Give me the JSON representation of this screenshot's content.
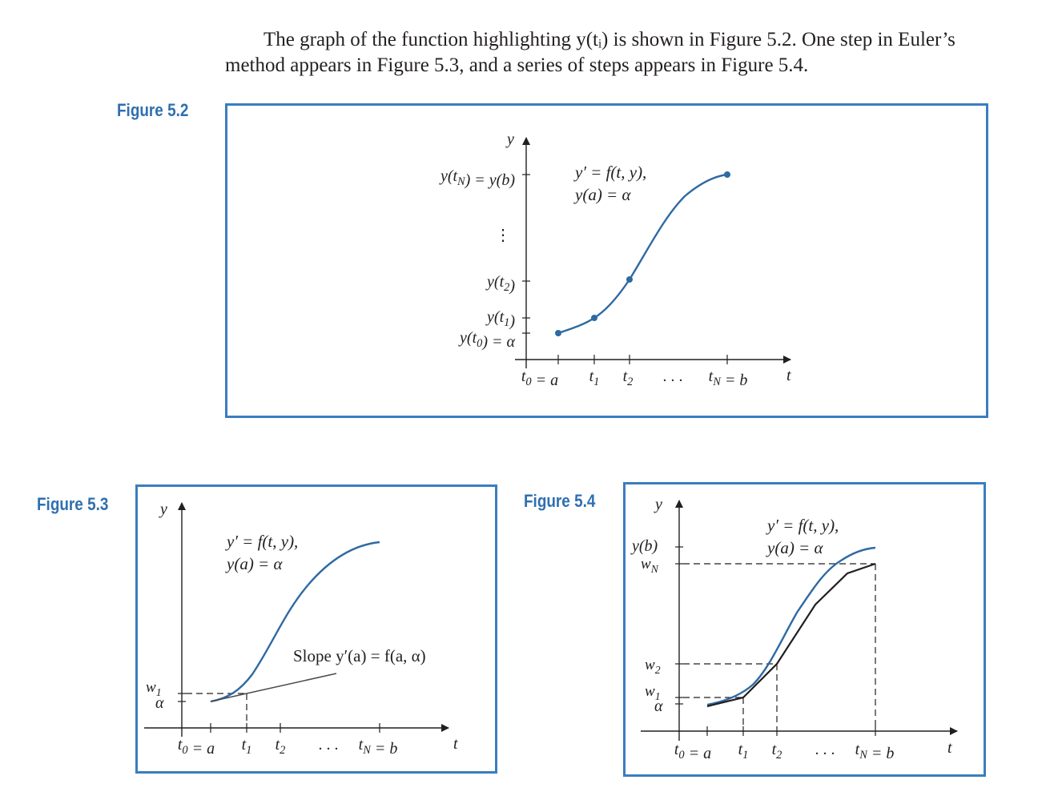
{
  "paragraph": {
    "line1": "The graph of the function highlighting y(tᵢ) is shown in Figure 5.2. One step in Euler’s",
    "line2": "method appears in Figure 5.3, and a series of steps appears in Figure 5.4."
  },
  "colors": {
    "label_blue": "#2f6fb0",
    "frame_blue": "#3a7dc0",
    "curve_blue": "#2e6aa3",
    "ink": "#231f20"
  },
  "figures": {
    "fig52": {
      "label": "Figure 5.2",
      "y_axis": "y",
      "t_axis": "t",
      "ode_line1": "y′ = f(t, y),",
      "ode_line2": "y(a) = α",
      "ylabels": [
        "y(t_N) = y(b)",
        "⋮",
        "y(t_2)",
        "y(t_1)",
        "y(t_0) = α"
      ],
      "tlabels": [
        "t_0 = a",
        "t_1",
        "t_2",
        ". . .",
        "t_N = b"
      ]
    },
    "fig53": {
      "label": "Figure 5.3",
      "y_axis": "y",
      "t_axis": "t",
      "ode_line1": "y′ = f(t, y),",
      "ode_line2": "y(a) = α",
      "slope": "Slope y′(a) = f(a, α)",
      "ylabels": [
        "w_1",
        "α"
      ],
      "tlabels": [
        "t_0 = a",
        "t_1",
        "t_2",
        ". . .",
        "t_N = b"
      ]
    },
    "fig54": {
      "label": "Figure 5.4",
      "y_axis": "y",
      "t_axis": "t",
      "ode_line1": "y′ = f(t, y),",
      "ode_line2": "y(a) = α",
      "ylabels": [
        "y(b)",
        "w_N",
        "w_2",
        "w_1",
        "α"
      ],
      "tlabels": [
        "t_0 = a",
        "t_1",
        "t_2",
        ". . .",
        "t_N = b"
      ]
    }
  }
}
